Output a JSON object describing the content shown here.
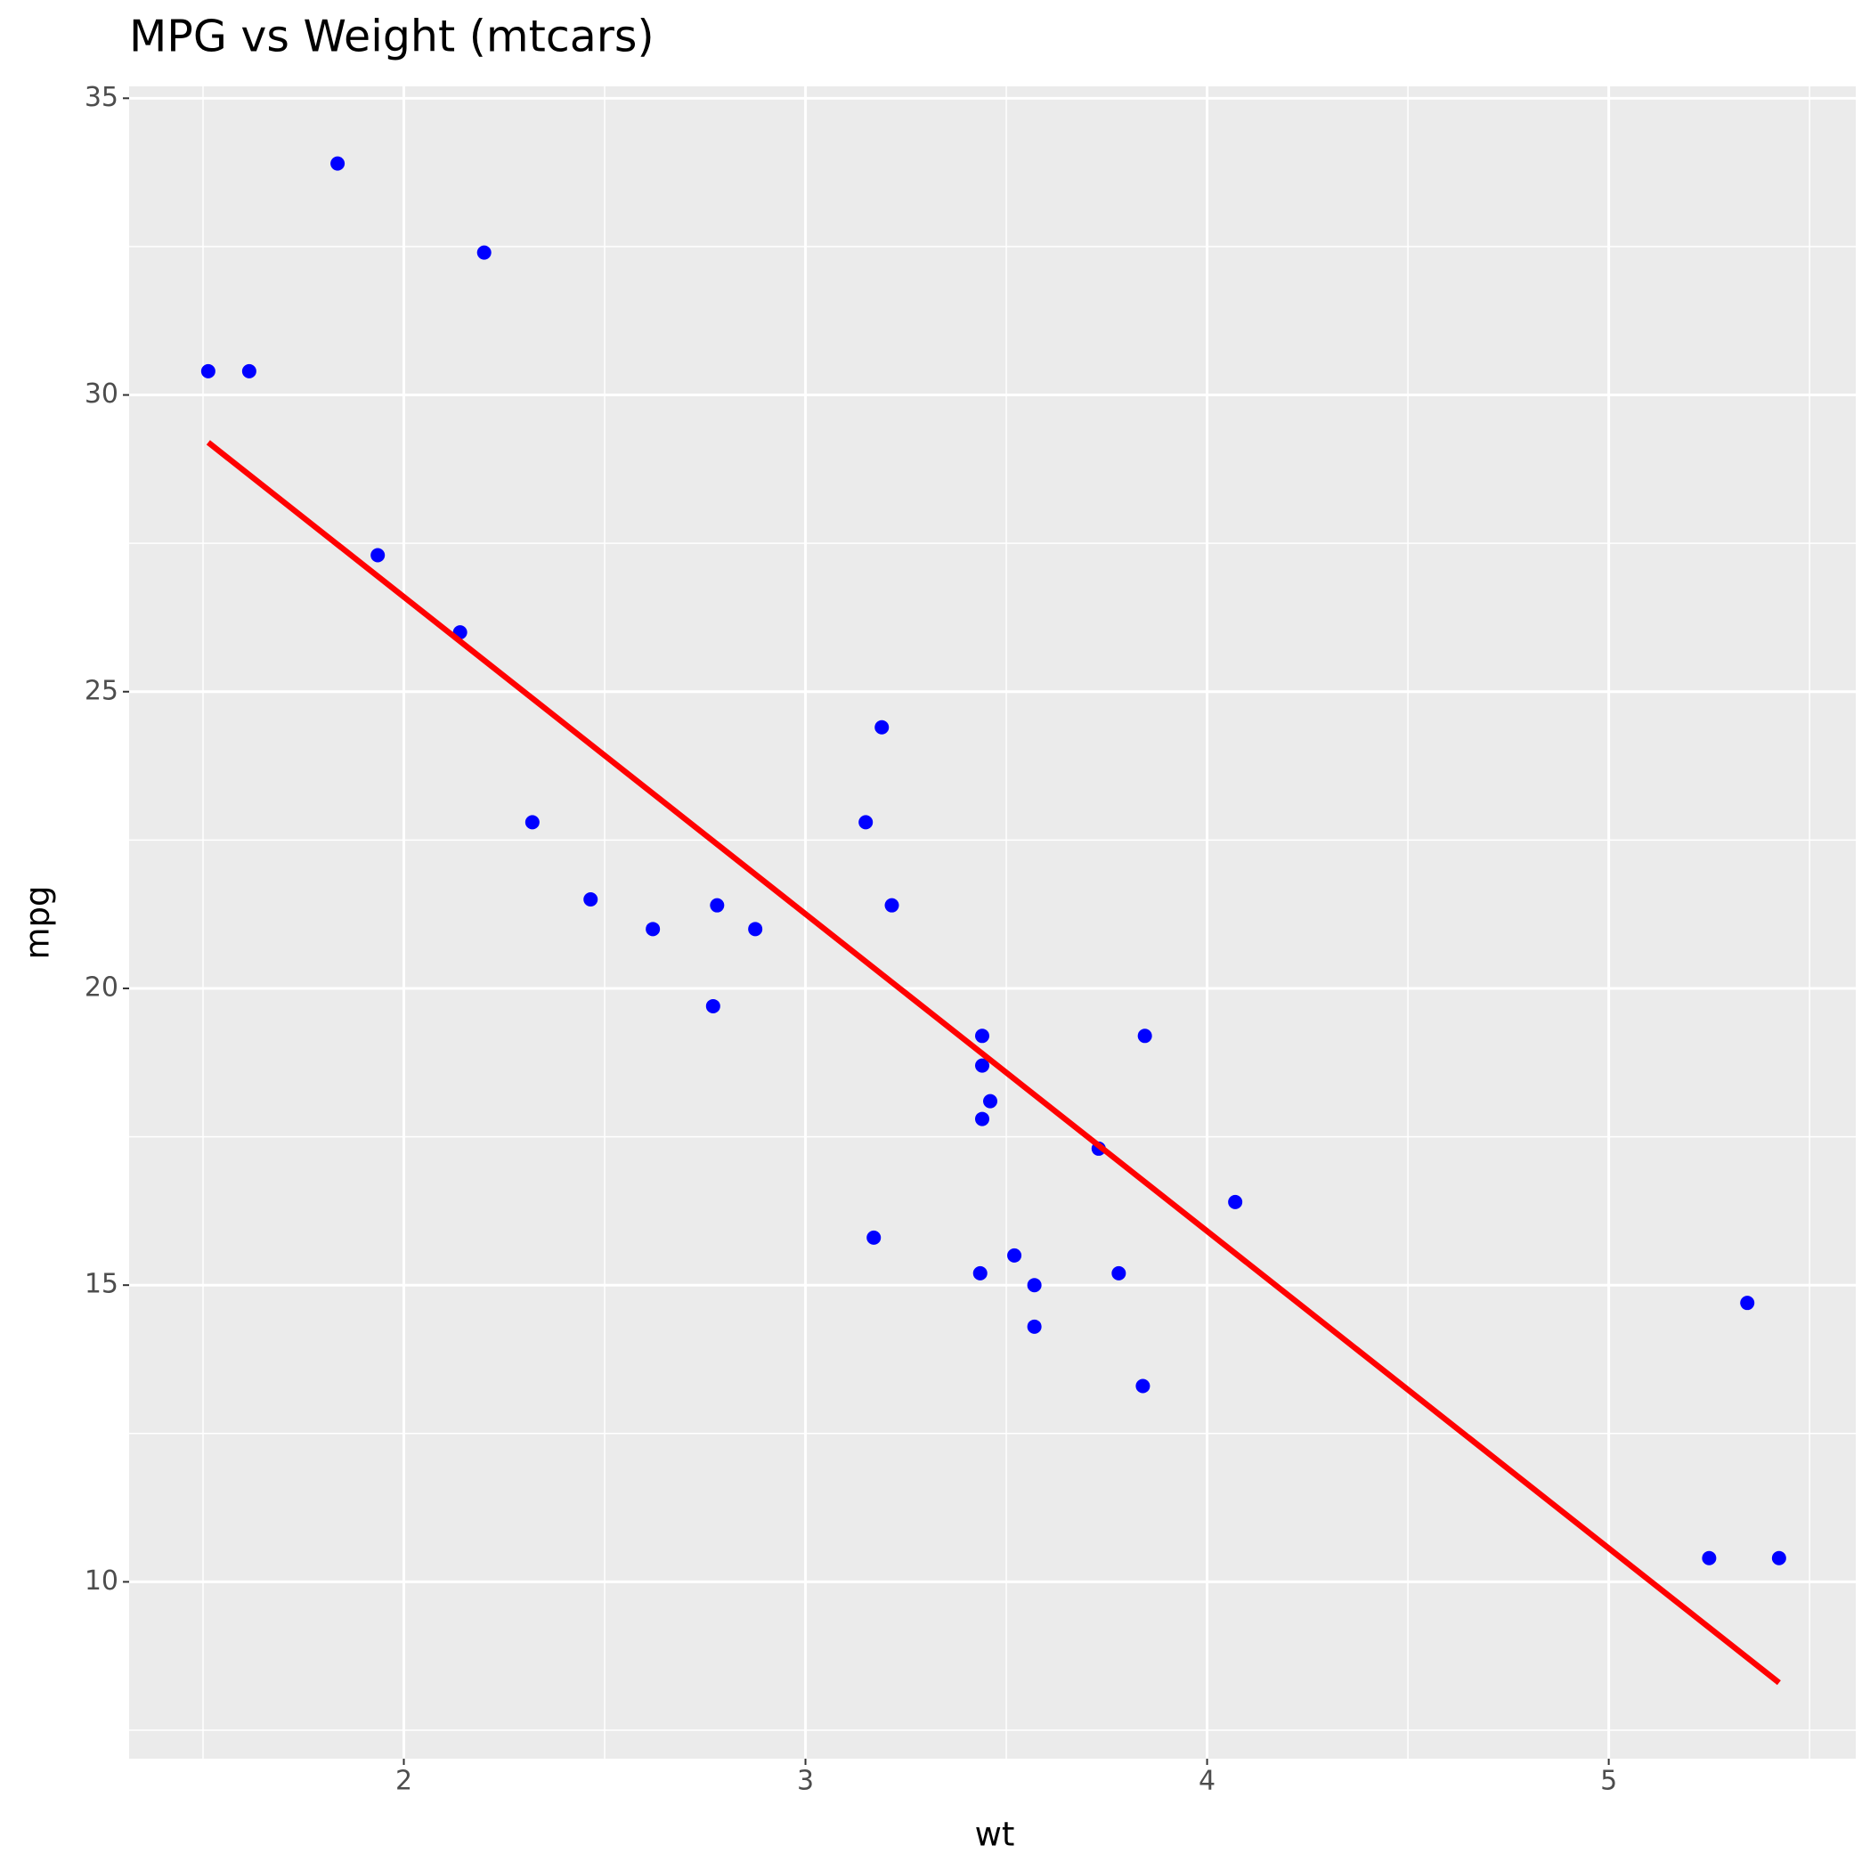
{
  "chart_data": {
    "type": "scatter",
    "title": "MPG vs Weight (mtcars)",
    "x_label": "wt",
    "y_label": "mpg",
    "x": [
      2.62,
      2.875,
      2.32,
      3.215,
      3.44,
      3.46,
      3.57,
      3.19,
      3.15,
      3.44,
      3.44,
      4.07,
      3.73,
      3.78,
      5.25,
      5.424,
      5.345,
      2.2,
      1.615,
      1.835,
      2.465,
      3.52,
      3.435,
      3.84,
      3.845,
      1.935,
      2.14,
      1.513,
      3.17,
      2.77,
      3.57,
      2.78
    ],
    "values": [
      21.0,
      21.0,
      22.8,
      21.4,
      18.7,
      18.1,
      14.3,
      24.4,
      22.8,
      19.2,
      17.8,
      16.4,
      17.3,
      15.2,
      10.4,
      10.4,
      14.7,
      32.4,
      30.4,
      33.9,
      21.5,
      15.5,
      15.2,
      13.3,
      19.2,
      27.3,
      26.0,
      30.4,
      15.8,
      19.7,
      15.0,
      21.4
    ],
    "color": "#0000ff",
    "fit_line": {
      "x": [
        1.513,
        5.424
      ],
      "values": [
        29.2,
        8.3
      ],
      "color": "#ff0000"
    },
    "xlim": [
      1.316,
      5.615
    ],
    "ylim": [
      7.02,
      35.2
    ],
    "xticks": [
      2,
      3,
      4,
      5
    ],
    "yticks": [
      10,
      15,
      20,
      25,
      30,
      35
    ],
    "xminor": [
      1.5,
      2.5,
      3.5,
      4.5,
      5.5
    ],
    "yminor": [
      7.5,
      12.5,
      17.5,
      22.5,
      27.5,
      32.5
    ],
    "grid": true
  }
}
